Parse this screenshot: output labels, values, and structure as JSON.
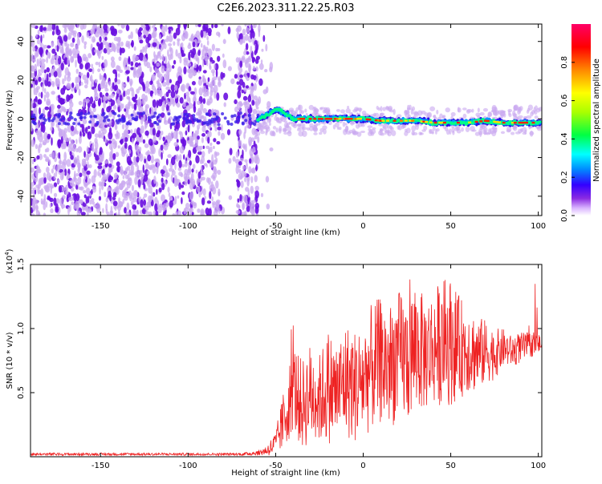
{
  "title": "C2E6.2023.311.22.25.R03",
  "colors": {
    "snr_line": "#ee2222",
    "axis": "#000000",
    "scatter_dim": "#c9a8f0",
    "scatter_strong": "#6a10e0"
  },
  "chart_data": [
    {
      "type": "heatmap",
      "title": "",
      "xlabel": "Height of straight line (km)",
      "ylabel": "Frequency (Hz)",
      "xlim": [
        -190,
        102
      ],
      "ylim": [
        -50,
        49
      ],
      "xticks": [
        -150,
        -100,
        -50,
        0,
        50,
        100
      ],
      "yticks": [
        -40,
        -20,
        0,
        20,
        40
      ],
      "grid": false,
      "description_values": {
        "noise_region_km": [
          -190,
          -60
        ],
        "trace_start_km": -60,
        "trace_freq_hz": [
          [
            -60,
            0
          ],
          [
            -55,
            2
          ],
          [
            -50,
            5
          ],
          [
            -45,
            3
          ],
          [
            -40,
            0
          ],
          [
            -30,
            0
          ],
          [
            -20,
            0
          ],
          [
            -10,
            0
          ],
          [
            0,
            0
          ],
          [
            10,
            -1
          ],
          [
            20,
            -1
          ],
          [
            30,
            -1
          ],
          [
            40,
            -2
          ],
          [
            50,
            -2
          ],
          [
            60,
            -2
          ],
          [
            70,
            -1
          ],
          [
            80,
            -2
          ],
          [
            90,
            -2
          ],
          [
            100,
            -2
          ]
        ]
      },
      "colorbar": {
        "label": "Normalized spectral amplitude",
        "range": [
          0,
          1
        ],
        "ticks": [
          "0.0",
          "0.2",
          "0.4",
          "0.6",
          "0.8"
        ],
        "tick_values": [
          0.0,
          0.2,
          0.4,
          0.6,
          0.8
        ],
        "colormap": [
          "#ffffff",
          "#d9b3ff",
          "#8a2be2",
          "#3300ff",
          "#0088ff",
          "#00ffff",
          "#00ff44",
          "#aaff00",
          "#ffff00",
          "#ff8800",
          "#ff0000",
          "#ff0066"
        ]
      }
    },
    {
      "type": "line",
      "title": "",
      "xlabel": "Height of straight line (km)",
      "ylabel": "SNR (10 * v/v)",
      "y_scale_label": "(x10",
      "y_scale_exp": "4",
      "y_scale_close": ")",
      "xlim": [
        -190,
        102
      ],
      "ylim": [
        0,
        1.5
      ],
      "xticks": [
        -150,
        -100,
        -50,
        0,
        50,
        100
      ],
      "yticks": [
        0.5,
        1.0,
        1.5
      ],
      "ytick_labels": [
        "0.5",
        "1.0",
        "1.5"
      ],
      "grid": false,
      "series": [
        {
          "x": [
            -190,
            -170,
            -150,
            -130,
            -110,
            -90,
            -70,
            -60,
            -55,
            -50,
            -45,
            -40,
            -35,
            -30,
            -25,
            -20,
            -15,
            -10,
            -5,
            0,
            5,
            10,
            15,
            20,
            25,
            30,
            35,
            40,
            45,
            50,
            55,
            60,
            65,
            70,
            75,
            80,
            85,
            90,
            95,
            100,
            102
          ],
          "y": [
            0.02,
            0.02,
            0.02,
            0.02,
            0.02,
            0.02,
            0.02,
            0.03,
            0.05,
            0.1,
            0.3,
            0.55,
            0.4,
            0.5,
            0.45,
            0.55,
            0.5,
            0.6,
            0.55,
            0.6,
            0.7,
            0.75,
            0.7,
            0.8,
            0.75,
            0.85,
            0.8,
            0.85,
            0.9,
            0.9,
            0.85,
            0.85,
            0.8,
            0.82,
            0.8,
            0.85,
            0.82,
            0.85,
            0.87,
            0.88,
            0.88
          ],
          "y_spread": [
            0.01,
            0.01,
            0.01,
            0.01,
            0.01,
            0.01,
            0.01,
            0.02,
            0.04,
            0.1,
            0.25,
            0.35,
            0.35,
            0.4,
            0.35,
            0.45,
            0.4,
            0.45,
            0.45,
            0.45,
            0.5,
            0.5,
            0.5,
            0.5,
            0.5,
            0.5,
            0.45,
            0.45,
            0.5,
            0.5,
            0.4,
            0.35,
            0.3,
            0.25,
            0.2,
            0.15,
            0.12,
            0.12,
            0.1,
            0.08,
            0.08
          ]
        }
      ]
    }
  ]
}
